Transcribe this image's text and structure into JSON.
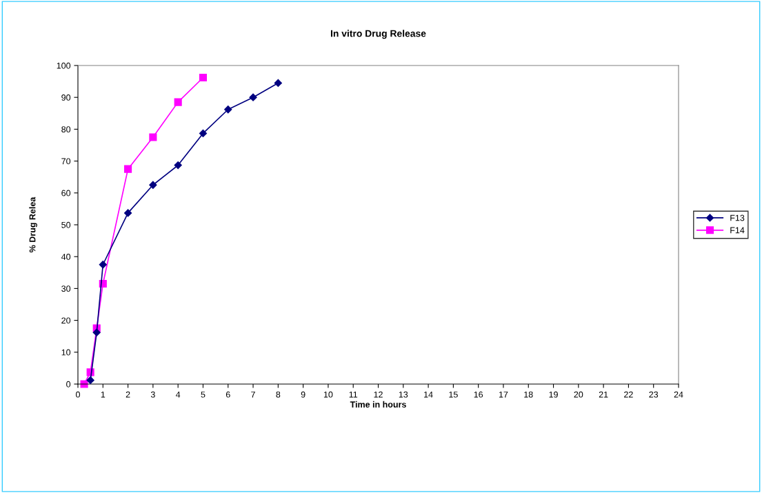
{
  "chart_data": {
    "type": "line",
    "title": "In vitro Drug Release",
    "xlabel": "Time in hours",
    "ylabel": "% Drug Relea",
    "xlim": [
      0,
      24
    ],
    "xticks": [
      0,
      1,
      2,
      3,
      4,
      5,
      6,
      7,
      8,
      9,
      10,
      11,
      12,
      13,
      14,
      15,
      16,
      17,
      18,
      19,
      20,
      21,
      22,
      23,
      24
    ],
    "ylim": [
      0,
      100
    ],
    "yticks": [
      0,
      10,
      20,
      30,
      40,
      50,
      60,
      70,
      80,
      90,
      100
    ],
    "grid": false,
    "legend": "right",
    "series": [
      {
        "name": "F13",
        "color": "#000080",
        "marker": "diamond",
        "x": [
          0.5,
          0.75,
          1,
          2,
          3,
          4,
          5,
          6,
          7,
          8
        ],
        "values": [
          1.2,
          16.2,
          37.5,
          53.7,
          62.5,
          68.7,
          78.7,
          86.2,
          90,
          94.5
        ]
      },
      {
        "name": "F14",
        "color": "#ff00ff",
        "marker": "square",
        "x": [
          0.25,
          0.5,
          0.75,
          1,
          2,
          3,
          4,
          5
        ],
        "values": [
          0,
          3.7,
          17.5,
          31.5,
          67.5,
          77.5,
          88.5,
          96.2
        ]
      }
    ]
  }
}
